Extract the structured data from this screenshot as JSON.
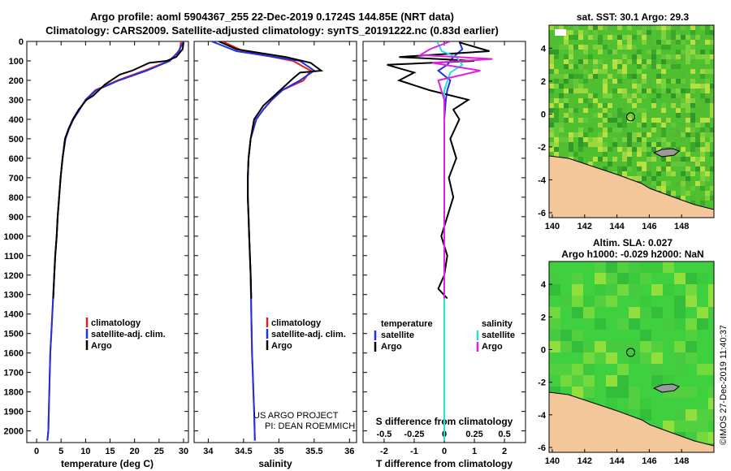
{
  "header": {
    "title_line1": "Argo profile: aoml 5904367_255 22-Dec-2019 0.1724S 144.85E (NRT data)",
    "title_line2": "Climatology: CARS2009. Satellite-adjusted climatology: synTS_20191222.nc (0.83d earlier)"
  },
  "colors": {
    "climatology": "#e02020",
    "satellite": "#2030e0",
    "argo": "#000000",
    "salinity_satellite": "#20e0e0",
    "salinity_argo": "#e020e0",
    "land": "#f4c79a",
    "sst_map": "#4fc030",
    "sla_map": "#3fd040"
  },
  "chart_data": [
    {
      "type": "line",
      "panel": "temperature",
      "xlabel": "temperature (deg C)",
      "x_ticks": [
        "0",
        "5",
        "10",
        "15",
        "20",
        "25",
        "30"
      ],
      "xlim": [
        -2,
        31
      ],
      "y_ticks": [
        "0",
        "100",
        "200",
        "300",
        "400",
        "500",
        "600",
        "700",
        "800",
        "900",
        "1000",
        "1100",
        "1200",
        "1300",
        "1400",
        "1500",
        "1600",
        "1700",
        "1800",
        "1900",
        "2000"
      ],
      "ylim": [
        2060,
        0
      ],
      "y_reversed": true,
      "legend": [
        "climatology",
        "satellite-adj. clim.",
        "Argo"
      ],
      "series": [
        {
          "name": "climatology",
          "color": "#e02020",
          "x": [
            29.5,
            29.2,
            27.0,
            22.0,
            16.5,
            12.0,
            10.0,
            8.8,
            7.5,
            6.6,
            5.9,
            5.3,
            4.9,
            4.6,
            4.3,
            4.1,
            3.8,
            3.6,
            3.4,
            3.2,
            3.0,
            2.8,
            2.7,
            2.6,
            2.5,
            2.4,
            2.2
          ],
          "y": [
            0,
            50,
            100,
            150,
            200,
            250,
            300,
            350,
            400,
            450,
            500,
            600,
            700,
            800,
            900,
            1000,
            1100,
            1200,
            1300,
            1400,
            1500,
            1600,
            1700,
            1800,
            1900,
            2000,
            2050
          ]
        },
        {
          "name": "satellite-adj. clim.",
          "color": "#2030e0",
          "x": [
            30.0,
            29.0,
            27.2,
            22.5,
            16.8,
            12.2,
            10.0,
            8.8,
            7.5,
            6.6,
            5.9,
            5.3,
            4.9,
            4.6,
            4.3,
            4.1,
            3.8,
            3.6,
            3.4,
            3.2,
            3.0,
            2.8,
            2.7,
            2.6,
            2.5,
            2.4,
            2.2
          ],
          "y": [
            0,
            50,
            100,
            150,
            200,
            250,
            300,
            350,
            400,
            450,
            500,
            600,
            700,
            800,
            900,
            1000,
            1100,
            1200,
            1300,
            1400,
            1500,
            1600,
            1700,
            1800,
            1900,
            2000,
            2050
          ]
        },
        {
          "name": "Argo",
          "color": "#000000",
          "x": [
            30.0,
            29.8,
            28.5,
            26.5,
            23.0,
            19.5,
            17.0,
            14.0,
            11.5,
            10.2,
            8.6,
            7.4,
            6.5,
            5.8,
            5.3,
            4.9,
            4.6,
            4.3,
            4.1,
            3.8,
            3.6,
            3.4
          ],
          "y": [
            5,
            40,
            80,
            100,
            110,
            150,
            170,
            220,
            280,
            300,
            350,
            400,
            450,
            500,
            600,
            700,
            800,
            900,
            1000,
            1100,
            1200,
            1320
          ]
        }
      ]
    },
    {
      "type": "line",
      "panel": "salinity",
      "xlabel": "salinity",
      "x_ticks": [
        "34",
        "34.5",
        "35",
        "35.5",
        "36"
      ],
      "xlim": [
        33.8,
        36.1
      ],
      "ylim": [
        2060,
        0
      ],
      "y_reversed": true,
      "legend": [
        "climatology",
        "satellite-adj. clim.",
        "Argo"
      ],
      "credit_line1": "US ARGO PROJECT",
      "credit_line2": "PI: DEAN ROEMMICH",
      "series": [
        {
          "name": "climatology",
          "color": "#e02020",
          "x": [
            34.2,
            34.5,
            35.2,
            35.45,
            35.35,
            35.05,
            34.9,
            34.78,
            34.68,
            34.6,
            34.57,
            34.56,
            34.56,
            34.57,
            34.58,
            34.6,
            34.61,
            34.62,
            34.63,
            34.64,
            34.65,
            34.66
          ],
          "y": [
            0,
            50,
            100,
            150,
            200,
            250,
            300,
            350,
            400,
            500,
            600,
            700,
            800,
            900,
            1000,
            1200,
            1400,
            1600,
            1700,
            1800,
            1900,
            2050
          ]
        },
        {
          "name": "satellite-adj. clim.",
          "color": "#2030e0",
          "x": [
            34.05,
            34.4,
            35.3,
            35.5,
            35.3,
            35.05,
            34.9,
            34.78,
            34.68,
            34.6,
            34.57,
            34.56,
            34.56,
            34.57,
            34.58,
            34.6,
            34.61,
            34.62,
            34.63,
            34.64,
            34.65,
            34.66
          ],
          "y": [
            0,
            50,
            100,
            150,
            200,
            250,
            300,
            350,
            400,
            500,
            600,
            700,
            800,
            900,
            1000,
            1200,
            1400,
            1600,
            1700,
            1800,
            1900,
            2050
          ]
        },
        {
          "name": "Argo",
          "color": "#000000",
          "x": [
            34.15,
            34.4,
            35.1,
            35.45,
            35.6,
            35.3,
            35.2,
            35.05,
            34.9,
            34.78,
            34.65,
            34.6,
            34.57,
            34.56,
            34.56,
            34.57,
            34.58,
            34.6,
            34.61
          ],
          "y": [
            0,
            40,
            80,
            110,
            150,
            160,
            190,
            240,
            290,
            330,
            400,
            500,
            600,
            700,
            800,
            900,
            1000,
            1200,
            1320
          ]
        }
      ]
    },
    {
      "type": "line",
      "panel": "difference",
      "xlabel": "T difference from climatology",
      "x_ticks": [
        "-2",
        "-1",
        "0",
        "1",
        "2"
      ],
      "xlim": [
        -2.7,
        2.7
      ],
      "s_axis_label": "S difference from climatology",
      "s_ticks": [
        "-0.5",
        "-0.25",
        "0",
        "0.25",
        "0.5"
      ],
      "s_xlim": [
        -0.675,
        0.675
      ],
      "ylim": [
        2060,
        0
      ],
      "y_reversed": true,
      "legend_temperature": [
        "temperature",
        "satellite",
        "Argo"
      ],
      "legend_salinity": [
        "salinity",
        "satellite",
        "Argo"
      ],
      "series": [
        {
          "name": "satellite",
          "group": "temperature",
          "color": "#2030e0",
          "x": [
            0.5,
            0.6,
            0.3,
            0.1,
            -0.2,
            0.2,
            0.1,
            0.05,
            0.0,
            0.0,
            0.0,
            0.0
          ],
          "y": [
            0,
            40,
            80,
            120,
            150,
            200,
            250,
            300,
            400,
            800,
            1200,
            1320
          ]
        },
        {
          "name": "Argo",
          "group": "temperature",
          "color": "#000000",
          "x": [
            0.5,
            1.5,
            -1.5,
            1.0,
            -1.9,
            -1.0,
            -1.5,
            -0.5,
            0.8,
            0.3,
            0.5,
            0.2,
            0.4,
            0.15,
            0.3,
            0.1,
            -0.1,
            0.1,
            0.0,
            -0.2,
            0.1
          ],
          "y": [
            5,
            50,
            80,
            100,
            120,
            160,
            200,
            250,
            300,
            350,
            400,
            500,
            600,
            700,
            800,
            900,
            1000,
            1100,
            1200,
            1270,
            1320
          ]
        },
        {
          "name": "satellite",
          "group": "salinity",
          "color": "#20e0e0",
          "x": [
            -0.06,
            -0.02,
            0.1,
            0.15,
            0.05,
            0.0,
            0.0,
            0.0,
            0.0
          ],
          "y": [
            0,
            50,
            80,
            120,
            160,
            250,
            400,
            1200,
            2050
          ]
        },
        {
          "name": "Argo",
          "group": "salinity",
          "color": "#e020e0",
          "x": [
            0.05,
            -0.12,
            -0.2,
            0.4,
            -0.1,
            0.3,
            -0.05,
            0.0,
            0.0,
            0.0,
            0.0
          ],
          "y": [
            0,
            40,
            70,
            90,
            110,
            150,
            200,
            300,
            600,
            1000,
            1320
          ]
        }
      ]
    },
    {
      "type": "heatmap",
      "panel": "sat-sst-map",
      "title": "sat. SST: 30.1 Argo: 29.3",
      "x_ticks": [
        "140",
        "142",
        "144",
        "146",
        "148"
      ],
      "xlim": [
        139.8,
        150
      ],
      "y_ticks": [
        "4",
        "2",
        "0",
        "-2",
        "-4",
        "-6"
      ],
      "ylim": [
        -6.3,
        5.4
      ],
      "argo_position": {
        "lon": 144.85,
        "lat": -0.1724
      }
    },
    {
      "type": "heatmap",
      "panel": "altimetry-sla-map",
      "title_line1": "Altim. SLA: 0.027",
      "title_line2": "Argo h1000: -0.029 h2000: NaN",
      "x_ticks": [
        "140",
        "142",
        "144",
        "146",
        "148"
      ],
      "xlim": [
        139.8,
        150
      ],
      "y_ticks": [
        "4",
        "2",
        "0",
        "-2",
        "-4",
        "-6"
      ],
      "ylim": [
        -6.3,
        5.4
      ],
      "argo_position": {
        "lon": 144.85,
        "lat": -0.1724
      }
    }
  ],
  "footer": {
    "timestamp": "©IMOS 27-Dec-2019 11:40:37"
  }
}
